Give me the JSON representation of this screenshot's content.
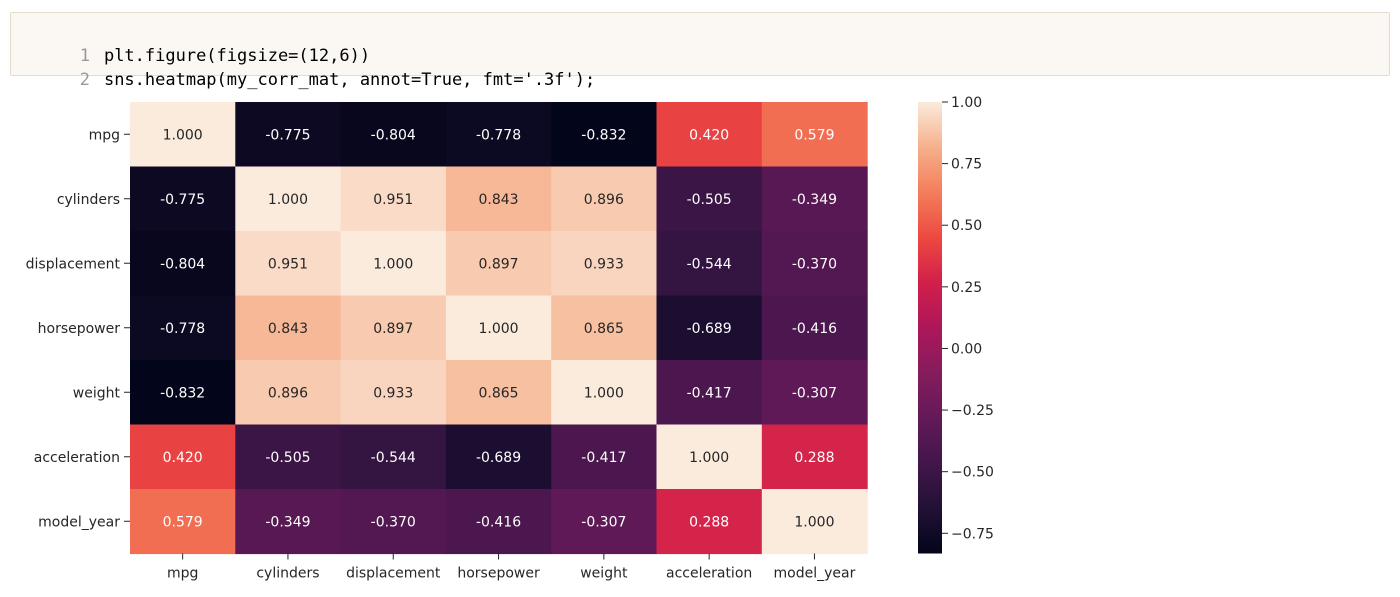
{
  "code_cell": {
    "lines": [
      {
        "number": "1",
        "text": "plt.figure(figsize=(12,6))"
      },
      {
        "number": "2",
        "text": "sns.heatmap(my_corr_mat, annot=True, fmt='.3f');"
      }
    ]
  },
  "chart_data": {
    "type": "heatmap",
    "title": "",
    "xlabel": "",
    "ylabel": "",
    "x_labels": [
      "mpg",
      "cylinders",
      "displacement",
      "horsepower",
      "weight",
      "acceleration",
      "model_year"
    ],
    "y_labels": [
      "mpg",
      "cylinders",
      "displacement",
      "horsepower",
      "weight",
      "acceleration",
      "model_year"
    ],
    "values": [
      [
        1.0,
        -0.775,
        -0.804,
        -0.778,
        -0.832,
        0.42,
        0.579
      ],
      [
        -0.775,
        1.0,
        0.951,
        0.843,
        0.896,
        -0.505,
        -0.349
      ],
      [
        -0.804,
        0.951,
        1.0,
        0.897,
        0.933,
        -0.544,
        -0.37
      ],
      [
        -0.778,
        0.843,
        0.897,
        1.0,
        0.865,
        -0.689,
        -0.416
      ],
      [
        -0.832,
        0.896,
        0.933,
        0.865,
        1.0,
        -0.417,
        -0.307
      ],
      [
        0.42,
        -0.505,
        -0.544,
        -0.689,
        -0.417,
        1.0,
        0.288
      ],
      [
        0.579,
        -0.349,
        -0.37,
        -0.416,
        -0.307,
        0.288,
        1.0
      ]
    ],
    "value_format": ".3f",
    "annotated": true,
    "colormap": "rocket",
    "colorbar": {
      "range": [
        -0.832,
        1.0
      ],
      "ticks": [
        1.0,
        0.75,
        0.5,
        0.25,
        0.0,
        -0.25,
        -0.5,
        -0.75
      ],
      "tick_labels": [
        "1.00",
        "0.75",
        "0.50",
        "0.25",
        "0.00",
        "−0.25",
        "−0.50",
        "−0.75"
      ],
      "placement": "right"
    },
    "grid": false
  }
}
